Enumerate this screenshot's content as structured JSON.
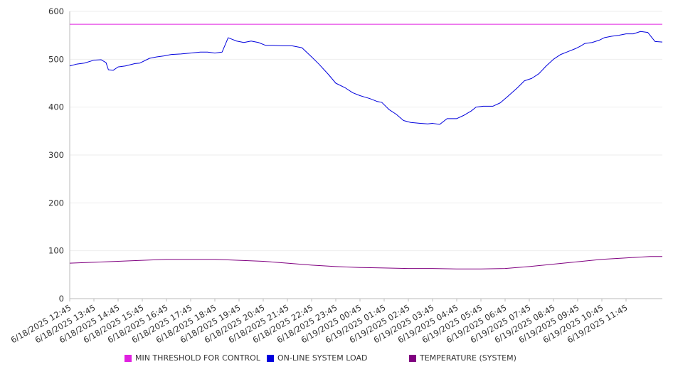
{
  "chart_data": {
    "type": "line",
    "ylim": [
      0,
      600
    ],
    "yticks": [
      "0",
      "100",
      "200",
      "300",
      "400",
      "500",
      "600"
    ],
    "categories": [
      "6/18/2025 12:45",
      "6/18/2025 13:45",
      "6/18/2025 14:45",
      "6/18/2025 15:45",
      "6/18/2025 16:45",
      "6/18/2025 17:45",
      "6/18/2025 18:45",
      "6/18/2025 19:45",
      "6/18/2025 20:45",
      "6/18/2025 21:45",
      "6/18/2025 22:45",
      "6/18/2025 23:45",
      "6/19/2025 00:45",
      "6/19/2025 01:45",
      "6/19/2025 02:45",
      "6/19/2025 03:45",
      "6/19/2025 04:45",
      "6/19/2025 05:45",
      "6/19/2025 06:45",
      "6/19/2025 07:45",
      "6/19/2025 08:45",
      "6/19/2025 09:45",
      "6/19/2025 10:45",
      "6/19/2025 11:45"
    ],
    "grid": true,
    "legend_position": "bottom",
    "series": [
      {
        "name": "MIN THRESHOLD FOR CONTROL",
        "color": "#e020e0",
        "x": [
          0,
          24.5
        ],
        "values": [
          573,
          573
        ]
      },
      {
        "name": "ON-LINE SYSTEM LOAD",
        "color": "#0000dd",
        "x": [
          0,
          0.3,
          0.6,
          1.0,
          1.3,
          1.5,
          1.6,
          1.8,
          2.0,
          2.3,
          2.7,
          2.9,
          3.3,
          3.6,
          3.9,
          4.2,
          4.6,
          5.0,
          5.4,
          5.7,
          6.0,
          6.3,
          6.55,
          6.7,
          6.9,
          7.2,
          7.5,
          7.8,
          8.1,
          8.4,
          8.8,
          9.2,
          9.6,
          10.0,
          10.3,
          10.7,
          11.0,
          11.4,
          11.7,
          12.0,
          12.4,
          12.7,
          12.9,
          13.2,
          13.5,
          13.8,
          14.1,
          14.5,
          14.8,
          15.0,
          15.3,
          15.6,
          16.0,
          16.3,
          16.6,
          16.8,
          17.1,
          17.5,
          17.8,
          18.1,
          18.5,
          18.8,
          19.1,
          19.4,
          19.7,
          20.0,
          20.3,
          20.6,
          20.9,
          21.1,
          21.3,
          21.6,
          21.9,
          22.1,
          22.4,
          22.7,
          23.0,
          23.3,
          23.6,
          23.9,
          24.2,
          24.5
        ],
        "values": [
          486,
          490,
          492,
          498,
          499,
          493,
          478,
          477,
          484,
          486,
          491,
          492,
          502,
          505,
          507,
          510,
          511,
          513,
          515,
          515,
          513,
          515,
          545,
          542,
          538,
          535,
          538,
          535,
          529,
          529,
          528,
          528,
          524,
          505,
          490,
          468,
          450,
          440,
          430,
          424,
          418,
          412,
          410,
          395,
          385,
          372,
          368,
          366,
          365,
          366,
          364,
          376,
          376,
          383,
          392,
          400,
          402,
          402,
          409,
          422,
          440,
          455,
          460,
          470,
          486,
          500,
          510,
          516,
          522,
          527,
          533,
          535,
          540,
          545,
          548,
          550,
          553,
          553,
          558,
          556,
          537,
          536
        ]
      },
      {
        "name": "TEMPERATURE (SYSTEM)",
        "color": "#800080",
        "x": [
          0,
          1,
          2,
          3,
          4,
          5,
          6,
          7,
          8,
          9,
          10,
          11,
          12,
          13,
          14,
          15,
          16,
          17,
          18,
          19,
          20,
          21,
          22,
          23,
          24,
          24.5
        ],
        "values": [
          74,
          76,
          78,
          80,
          82,
          82,
          82,
          80,
          78,
          74,
          70,
          67,
          65,
          64,
          63,
          63,
          62,
          62,
          63,
          67,
          72,
          77,
          82,
          85,
          88,
          88
        ]
      }
    ]
  }
}
